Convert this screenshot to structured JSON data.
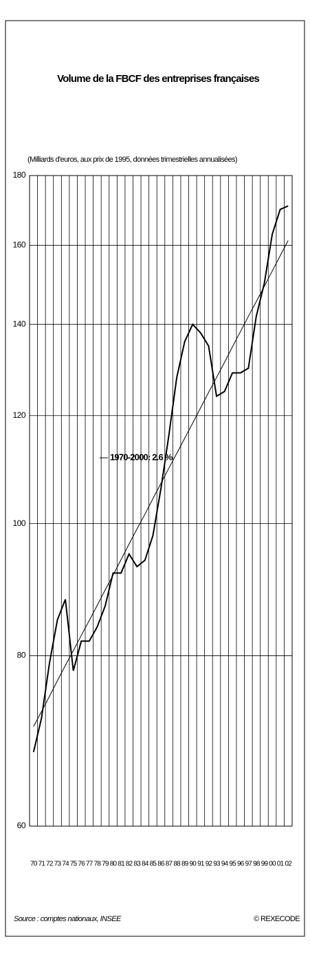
{
  "chart_data": {
    "type": "line",
    "title": "Volume de la FBCF des entreprises françaises",
    "subtitle": "(Milliards d'euros, aux prix de 1995, données trimestrielles annualisées)",
    "source": "Source : comptes nationaux, INSEE",
    "credit": "© REXECODE",
    "categories": [
      "70",
      "71",
      "72",
      "73",
      "74",
      "75",
      "76",
      "77",
      "78",
      "79",
      "80",
      "81",
      "82",
      "83",
      "84",
      "85",
      "86",
      "87",
      "88",
      "89",
      "90",
      "91",
      "92",
      "93",
      "94",
      "95",
      "96",
      "97",
      "98",
      "99",
      "00",
      "01",
      "02"
    ],
    "series": [
      {
        "color": "#000000",
        "values": [
          68,
          72,
          79,
          85,
          88,
          78,
          82,
          82,
          84,
          87,
          92,
          92,
          95,
          93,
          94,
          98,
          106,
          116,
          128,
          136,
          140,
          138,
          135,
          124,
          125,
          129,
          129,
          130,
          142,
          150,
          163,
          170,
          171
        ]
      },
      {
        "name": "1970-2000: 2.6 %",
        "color": "#000000",
        "values": [
          71.0,
          72.8,
          74.7,
          76.7,
          78.7,
          80.7,
          82.8,
          84.9,
          87.1,
          89.4,
          91.7,
          94.1,
          96.6,
          99.1,
          101.6,
          104.3,
          107.0,
          109.8,
          112.6,
          115.5,
          118.5,
          121.6,
          124.8,
          128.0,
          131.3,
          134.8,
          138.3,
          141.9,
          145.5,
          149.3,
          153.2,
          157.2,
          161.3
        ]
      }
    ],
    "ylim": [
      60,
      180
    ],
    "yticks": [
      60,
      80,
      100,
      120,
      140,
      160,
      180
    ],
    "log_scale": true,
    "grid": true,
    "legend": "center-left"
  }
}
